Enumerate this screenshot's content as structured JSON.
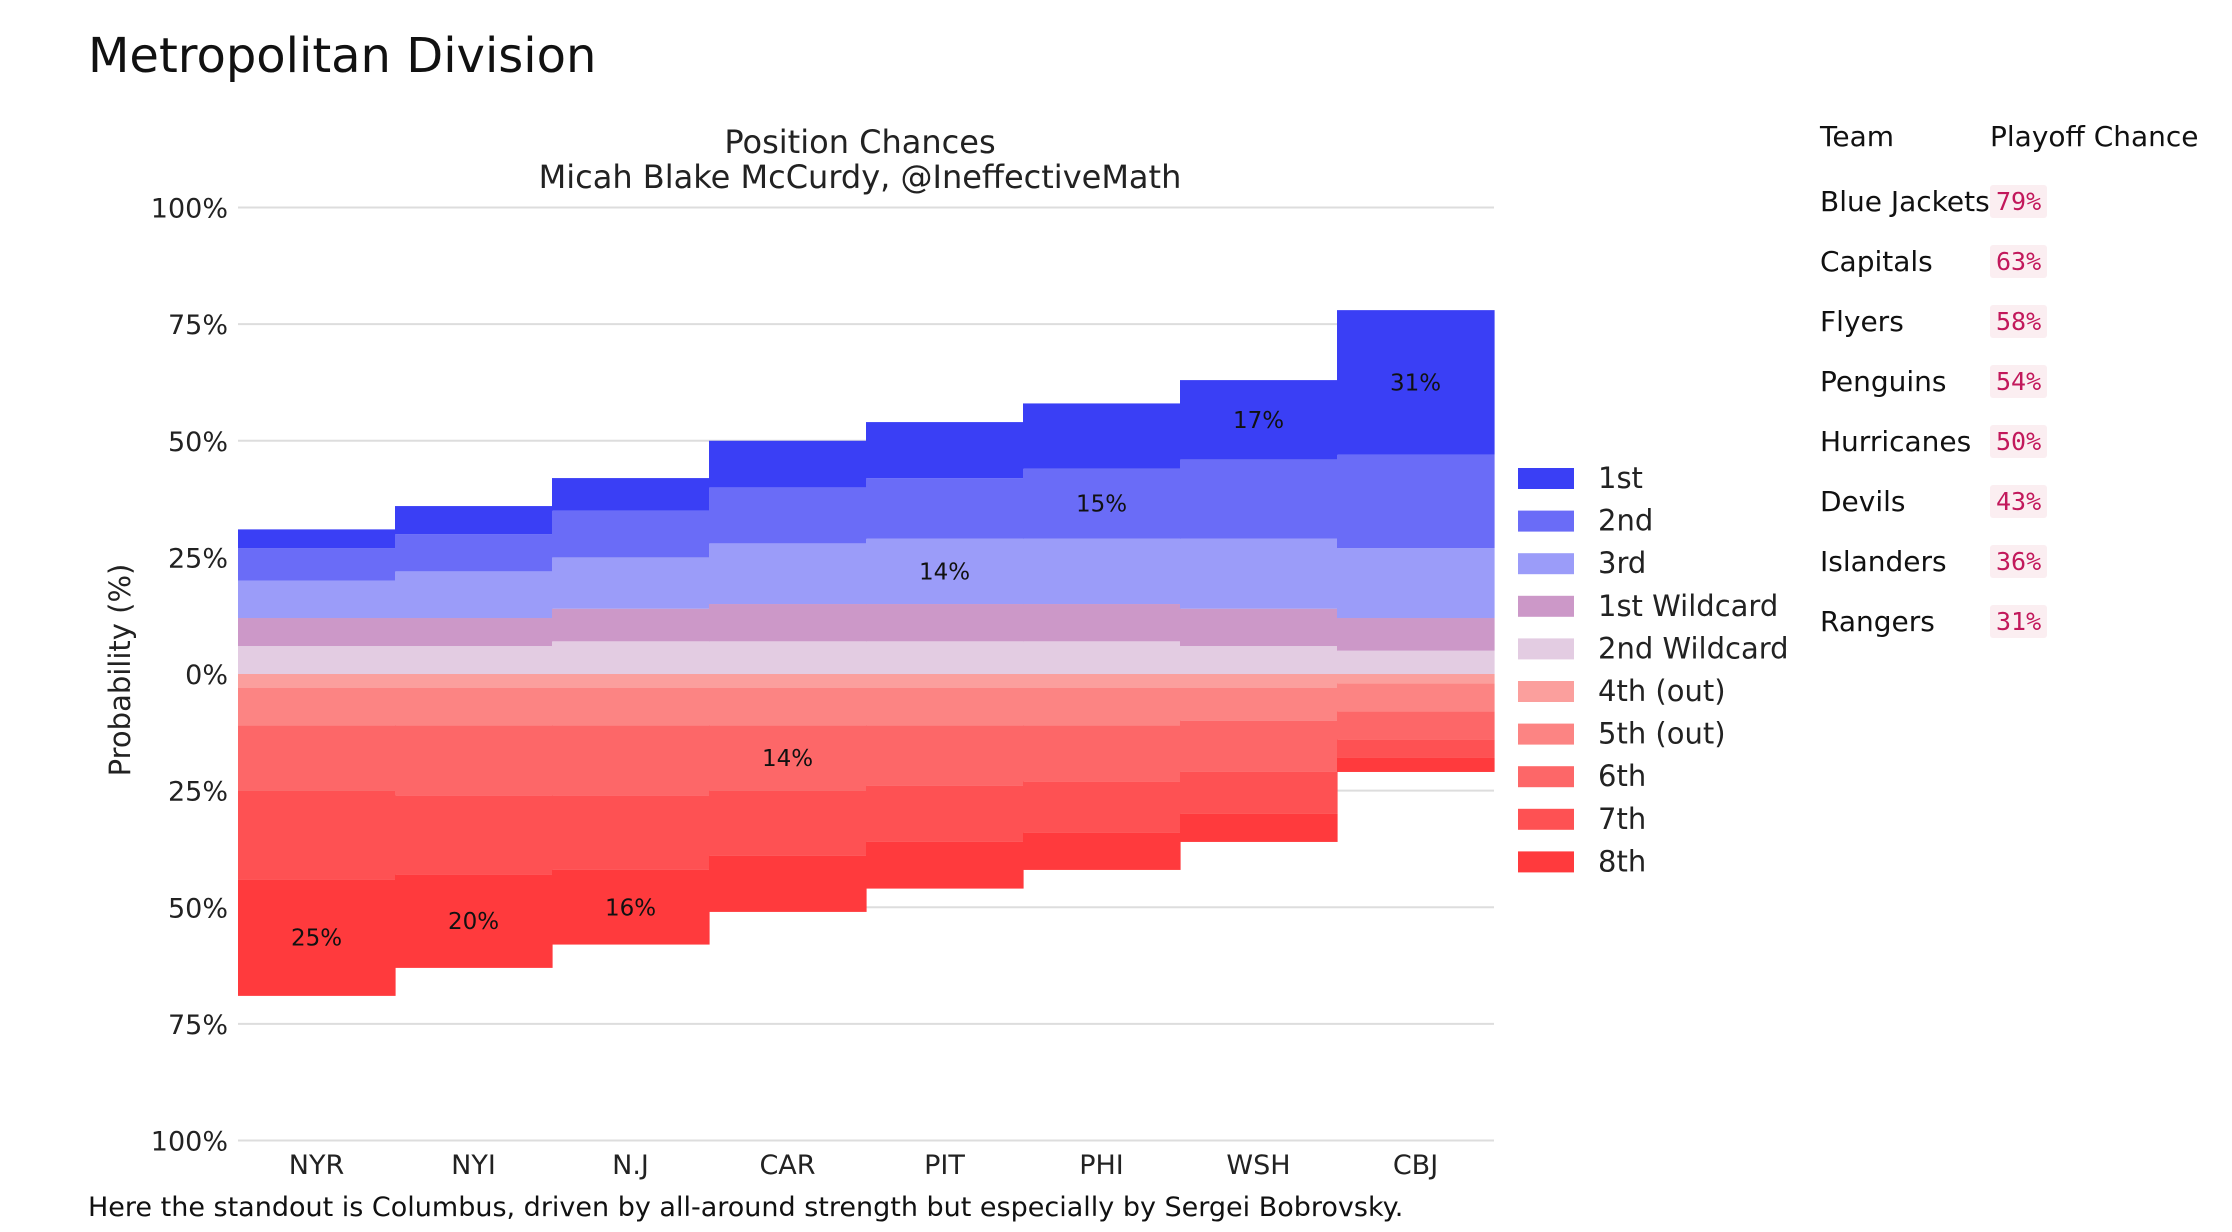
{
  "page": {
    "title": "Metropolitan Division",
    "caption": "Here the standout is Columbus, driven by all-around strength but especially by Sergei Bobrovsky."
  },
  "table": {
    "headers": [
      "Team",
      "Playoff Chance"
    ],
    "rows": [
      {
        "team": "Blue Jackets",
        "chance": "79%"
      },
      {
        "team": "Capitals",
        "chance": "63%"
      },
      {
        "team": "Flyers",
        "chance": "58%"
      },
      {
        "team": "Penguins",
        "chance": "54%"
      },
      {
        "team": "Hurricanes",
        "chance": "50%"
      },
      {
        "team": "Devils",
        "chance": "43%"
      },
      {
        "team": "Islanders",
        "chance": "36%"
      },
      {
        "team": "Rangers",
        "chance": "31%"
      }
    ]
  },
  "chart_data": {
    "type": "bar",
    "layout": "diverging stacked step bars (playoff positions above 0, out-of-playoff positions below 0)",
    "title": "Position Chances",
    "subtitle": "Micah Blake McCurdy, @IneffectiveMath",
    "ylabel": "Probability (%)",
    "xlabel": "",
    "ylim": [
      -100,
      100
    ],
    "yticks": [
      100,
      75,
      50,
      25,
      0,
      -25,
      -50,
      -75,
      -100
    ],
    "ytick_labels": [
      "100%",
      "75%",
      "50%",
      "25%",
      "0%",
      "25%",
      "50%",
      "75%",
      "100%"
    ],
    "grid": true,
    "legend_position": "right",
    "categories": [
      "NYR",
      "NYI",
      "N.J",
      "CAR",
      "PIT",
      "PHI",
      "WSH",
      "CBJ"
    ],
    "series": [
      {
        "name": "1st",
        "color": "#3a3ff5",
        "side": "up",
        "values": [
          4,
          6,
          7,
          10,
          12,
          14,
          17,
          31
        ]
      },
      {
        "name": "2nd",
        "color": "#6a6cf7",
        "side": "up",
        "values": [
          7,
          8,
          10,
          12,
          13,
          15,
          17,
          20
        ]
      },
      {
        "name": "3rd",
        "color": "#9b9cf9",
        "side": "up",
        "values": [
          8,
          10,
          11,
          13,
          14,
          14,
          15,
          15
        ]
      },
      {
        "name": "1st Wildcard",
        "color": "#cc98c8",
        "side": "up",
        "values": [
          6,
          6,
          7,
          8,
          8,
          8,
          8,
          7
        ]
      },
      {
        "name": "2nd Wildcard",
        "color": "#e3cce2",
        "side": "up",
        "values": [
          6,
          6,
          7,
          7,
          7,
          7,
          6,
          5
        ]
      },
      {
        "name": "4th (out)",
        "color": "#fb9f9d",
        "side": "down",
        "values": [
          3,
          3,
          3,
          3,
          3,
          3,
          3,
          2
        ]
      },
      {
        "name": "5th (out)",
        "color": "#fc8483",
        "side": "down",
        "values": [
          8,
          8,
          8,
          8,
          8,
          8,
          7,
          6
        ]
      },
      {
        "name": "6th",
        "color": "#fd6768",
        "side": "down",
        "values": [
          14,
          15,
          15,
          14,
          13,
          12,
          11,
          6
        ]
      },
      {
        "name": "7th",
        "color": "#fe5153",
        "side": "down",
        "values": [
          19,
          17,
          16,
          14,
          12,
          11,
          9,
          4
        ]
      },
      {
        "name": "8th",
        "color": "#ff3a3d",
        "side": "down",
        "values": [
          25,
          20,
          16,
          12,
          10,
          8,
          6,
          3
        ]
      }
    ],
    "annotations": [
      {
        "category": "NYR",
        "series": "8th",
        "text": "25%"
      },
      {
        "category": "NYI",
        "series": "8th",
        "text": "20%"
      },
      {
        "category": "N.J",
        "series": "8th",
        "text": "16%"
      },
      {
        "category": "CAR",
        "series": "6th",
        "text": "14%"
      },
      {
        "category": "PIT",
        "series": "3rd",
        "text": "14%"
      },
      {
        "category": "PHI",
        "series": "2nd",
        "text": "15%"
      },
      {
        "category": "WSH",
        "series": "1st",
        "text": "17%"
      },
      {
        "category": "CBJ",
        "series": "1st",
        "text": "31%"
      }
    ]
  }
}
